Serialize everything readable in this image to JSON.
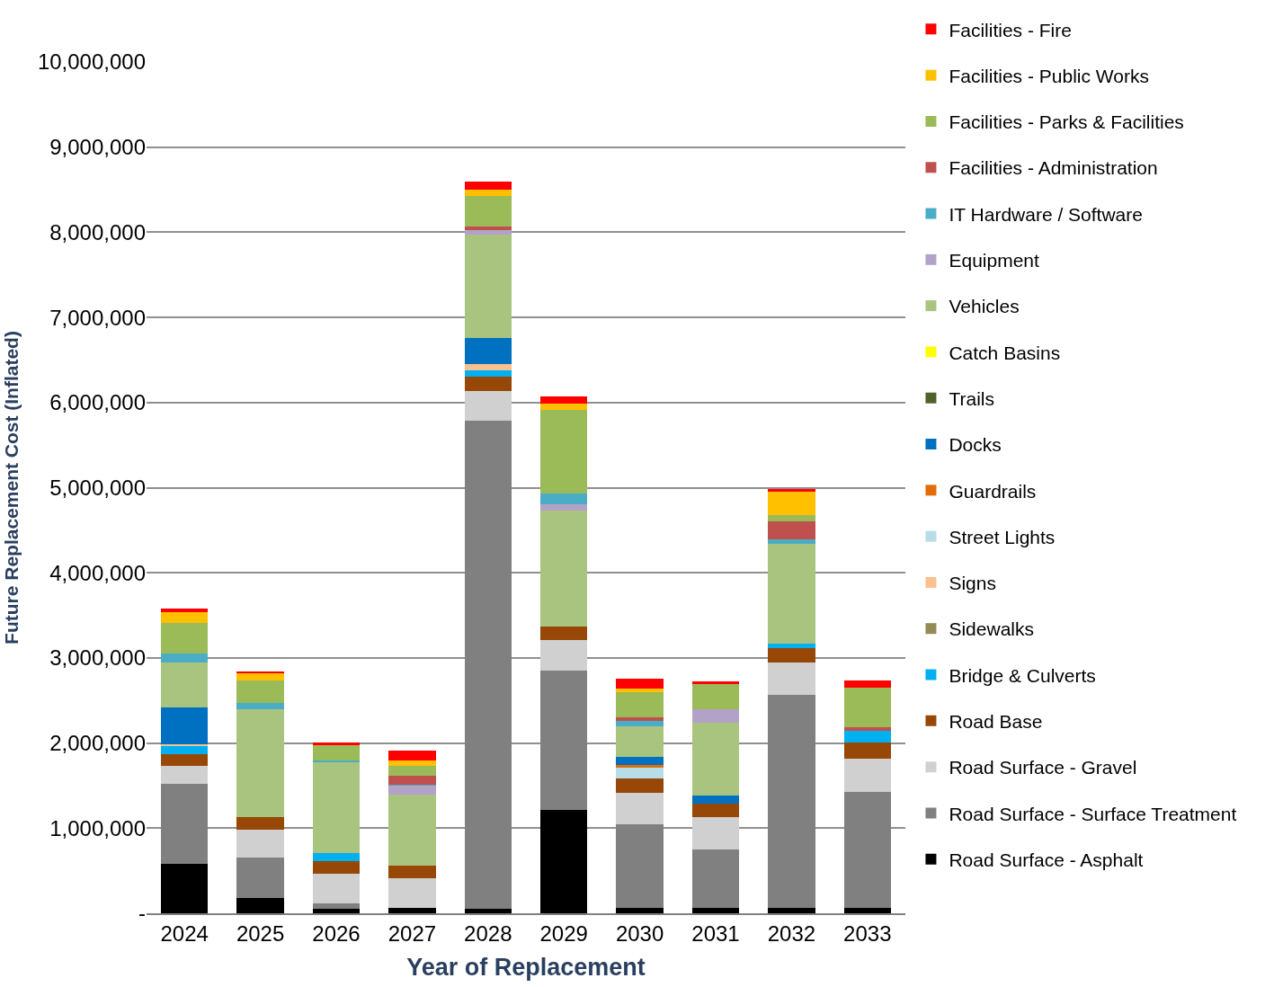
{
  "chart_data": {
    "type": "bar",
    "stacked": true,
    "xlabel": "Year of Replacement",
    "ylabel": "Future Replacement Cost (Inflated)",
    "categories": [
      "2024",
      "2025",
      "2026",
      "2027",
      "2028",
      "2029",
      "2030",
      "2031",
      "2032",
      "2033"
    ],
    "ylim": [
      0,
      10000000
    ],
    "yticks": [
      {
        "value": 0,
        "label": "-"
      },
      {
        "value": 1000000,
        "label": "1,000,000"
      },
      {
        "value": 2000000,
        "label": "2,000,000"
      },
      {
        "value": 3000000,
        "label": "3,000,000"
      },
      {
        "value": 4000000,
        "label": "4,000,000"
      },
      {
        "value": 5000000,
        "label": "5,000,000"
      },
      {
        "value": 6000000,
        "label": "6,000,000"
      },
      {
        "value": 7000000,
        "label": "7,000,000"
      },
      {
        "value": 8000000,
        "label": "8,000,000"
      },
      {
        "value": 9000000,
        "label": "9,000,000"
      },
      {
        "value": 10000000,
        "label": "10,000,000"
      }
    ],
    "grid": "y",
    "legend": "right",
    "series": [
      {
        "name": "Road Surface - Asphalt",
        "color": "#000000",
        "values": [
          580000,
          180000,
          50000,
          60000,
          50000,
          1210000,
          60000,
          60000,
          60000,
          60000
        ]
      },
      {
        "name": "Road Surface - Surface Treatment",
        "color": "#808080",
        "values": [
          940000,
          470000,
          70000,
          0,
          5740000,
          1640000,
          990000,
          690000,
          2510000,
          1370000
        ]
      },
      {
        "name": "Road Surface - Gravel",
        "color": "#d0d0d0",
        "values": [
          210000,
          330000,
          340000,
          350000,
          350000,
          360000,
          360000,
          380000,
          380000,
          390000
        ]
      },
      {
        "name": "Road Base",
        "color": "#974706",
        "values": [
          140000,
          150000,
          150000,
          150000,
          160000,
          160000,
          170000,
          160000,
          160000,
          190000
        ]
      },
      {
        "name": "Bridge & Culverts",
        "color": "#00b0f0",
        "values": [
          100000,
          0,
          100000,
          0,
          80000,
          0,
          0,
          0,
          60000,
          130000
        ]
      },
      {
        "name": "Sidewalks",
        "color": "#948a54",
        "values": [
          0,
          0,
          0,
          0,
          0,
          0,
          0,
          0,
          0,
          0
        ]
      },
      {
        "name": "Signs",
        "color": "#fac090",
        "values": [
          20000,
          0,
          0,
          0,
          70000,
          0,
          0,
          0,
          0,
          0
        ]
      },
      {
        "name": "Street Lights",
        "color": "#b7dee8",
        "values": [
          0,
          0,
          0,
          0,
          0,
          0,
          130000,
          0,
          0,
          0
        ]
      },
      {
        "name": "Guardrails",
        "color": "#e36c09",
        "values": [
          0,
          0,
          0,
          0,
          0,
          0,
          30000,
          0,
          0,
          0
        ]
      },
      {
        "name": "Docks",
        "color": "#0070c0",
        "values": [
          430000,
          0,
          0,
          0,
          310000,
          0,
          100000,
          90000,
          0,
          0
        ]
      },
      {
        "name": "Trails",
        "color": "#4f6228",
        "values": [
          0,
          0,
          0,
          0,
          0,
          0,
          0,
          0,
          0,
          0
        ]
      },
      {
        "name": "Catch Basins",
        "color": "#ffff00",
        "values": [
          0,
          0,
          0,
          0,
          0,
          0,
          0,
          0,
          0,
          0
        ]
      },
      {
        "name": "Vehicles",
        "color": "#a9c47f",
        "values": [
          530000,
          1270000,
          1060000,
          830000,
          1210000,
          1360000,
          360000,
          860000,
          1170000,
          0
        ]
      },
      {
        "name": "Equipment",
        "color": "#b3a2c7",
        "values": [
          0,
          0,
          0,
          110000,
          60000,
          70000,
          0,
          160000,
          0,
          0
        ]
      },
      {
        "name": "IT Hardware / Software",
        "color": "#4bacc6",
        "values": [
          100000,
          70000,
          30000,
          10000,
          0,
          130000,
          60000,
          0,
          50000,
          0
        ]
      },
      {
        "name": "Facilities - Administration",
        "color": "#c0504d",
        "values": [
          0,
          0,
          0,
          110000,
          40000,
          0,
          40000,
          0,
          210000,
          50000
        ]
      },
      {
        "name": "Facilities - Parks & Facilities",
        "color": "#9bbb59",
        "values": [
          360000,
          270000,
          170000,
          110000,
          360000,
          980000,
          300000,
          300000,
          80000,
          460000
        ]
      },
      {
        "name": "Facilities - Public Works",
        "color": "#ffc000",
        "values": [
          130000,
          80000,
          0,
          60000,
          70000,
          80000,
          40000,
          0,
          280000,
          0
        ]
      },
      {
        "name": "Facilities - Fire",
        "color": "#ff0000",
        "values": [
          40000,
          20000,
          40000,
          120000,
          100000,
          80000,
          120000,
          20000,
          20000,
          80000
        ]
      }
    ]
  }
}
